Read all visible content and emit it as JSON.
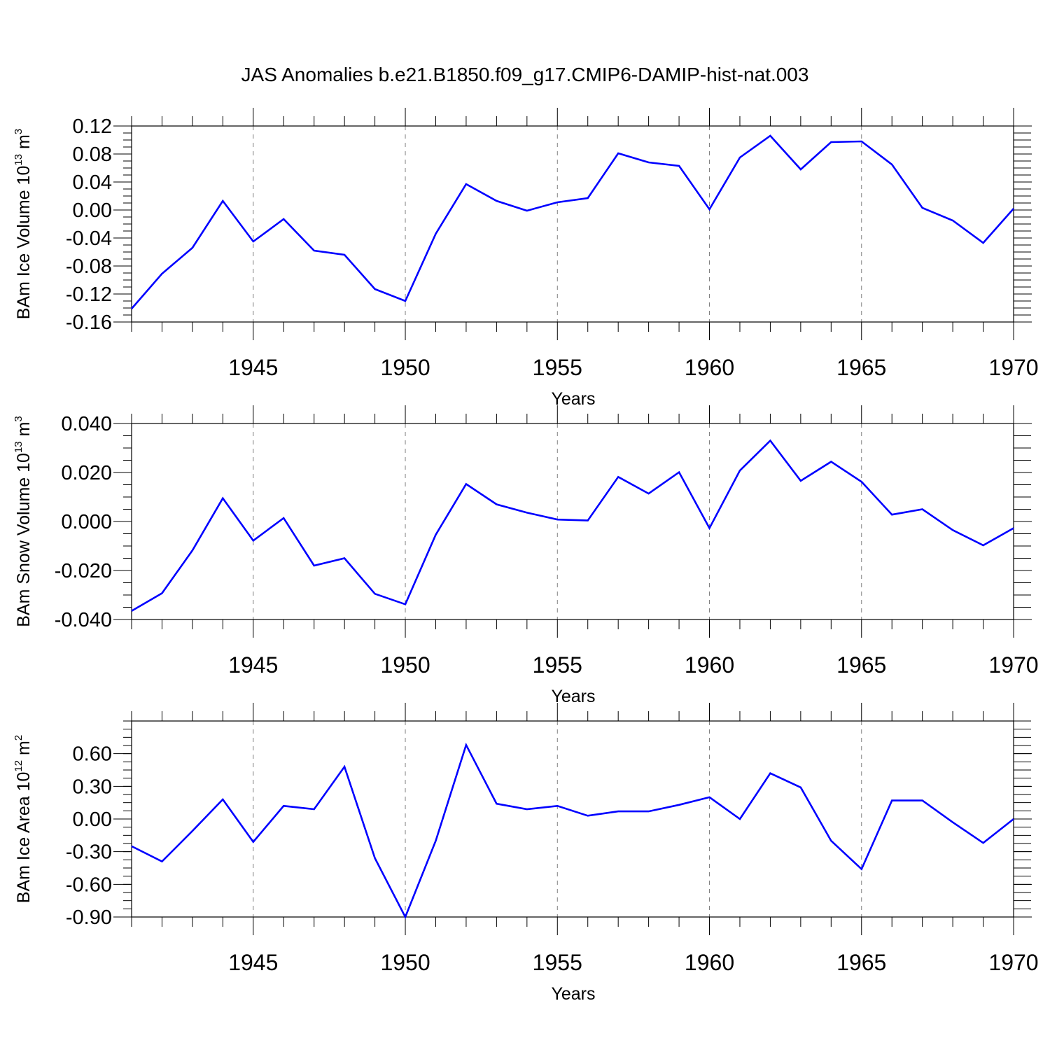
{
  "title": "JAS Anomalies b.e21.B1850.f09_g17.CMIP6-DAMIP-hist-nat.003",
  "colors": {
    "line": "#0000ff",
    "axis": "#000000",
    "grid": "#808080"
  },
  "chart_data": [
    {
      "type": "line",
      "ylabel": {
        "base": "BAm Ice Volume 10",
        "exp": "13",
        "unit": " m",
        "unit_exp": "3"
      },
      "xlabel": "Years",
      "xlim": [
        1941,
        1970
      ],
      "ylim": [
        -0.16,
        0.12
      ],
      "yticks": [
        -0.16,
        -0.12,
        -0.08,
        -0.04,
        0.0,
        0.04,
        0.08,
        0.12
      ],
      "ytick_labels": [
        "-0.16",
        "-0.12",
        "-0.08",
        "-0.04",
        "0.00",
        "0.04",
        "0.08",
        "0.12"
      ],
      "xticks": [
        1945,
        1950,
        1955,
        1960,
        1965,
        1970
      ],
      "xtick_labels": [
        "1945",
        "1950",
        "1955",
        "1960",
        "1965",
        "1970"
      ],
      "grid": "vertical dashed at labeled years",
      "series": [
        {
          "x": [
            1941,
            1942,
            1943,
            1944,
            1945,
            1946,
            1947,
            1948,
            1949,
            1950,
            1951,
            1952,
            1953,
            1954,
            1955,
            1956,
            1957,
            1958,
            1959,
            1960,
            1961,
            1962,
            1963,
            1964,
            1965,
            1966,
            1967,
            1968,
            1969,
            1970
          ],
          "values": [
            -0.141,
            -0.091,
            -0.054,
            0.013,
            -0.045,
            -0.013,
            -0.058,
            -0.064,
            -0.113,
            -0.13,
            -0.034,
            0.037,
            0.013,
            -0.001,
            0.011,
            0.017,
            0.081,
            0.068,
            0.063,
            0.001,
            0.075,
            0.106,
            0.058,
            0.097,
            0.098,
            0.065,
            0.003,
            -0.015,
            -0.047,
            0.002
          ]
        }
      ]
    },
    {
      "type": "line",
      "ylabel": {
        "base": "BAm Snow Volume 10",
        "exp": "13",
        "unit": " m",
        "unit_exp": "3"
      },
      "xlabel": "Years",
      "xlim": [
        1941,
        1970
      ],
      "ylim": [
        -0.04,
        0.04
      ],
      "yticks": [
        -0.04,
        -0.02,
        0.0,
        0.02,
        0.04
      ],
      "ytick_labels": [
        "-0.040",
        "-0.020",
        "0.000",
        "0.020",
        "0.040"
      ],
      "xticks": [
        1945,
        1950,
        1955,
        1960,
        1965,
        1970
      ],
      "xtick_labels": [
        "1945",
        "1950",
        "1955",
        "1960",
        "1965",
        "1970"
      ],
      "grid": "vertical dashed at labeled years",
      "series": [
        {
          "x": [
            1941,
            1942,
            1943,
            1944,
            1945,
            1946,
            1947,
            1948,
            1949,
            1950,
            1951,
            1952,
            1953,
            1954,
            1955,
            1956,
            1957,
            1958,
            1959,
            1960,
            1961,
            1962,
            1963,
            1964,
            1965,
            1966,
            1967,
            1968,
            1969,
            1970
          ],
          "values": [
            -0.0365,
            -0.0293,
            -0.0118,
            0.0095,
            -0.0078,
            0.0014,
            -0.018,
            -0.015,
            -0.0295,
            -0.0338,
            -0.0054,
            0.0153,
            0.007,
            0.0036,
            0.0008,
            0.0004,
            0.0182,
            0.0114,
            0.0201,
            -0.0027,
            0.0208,
            0.033,
            0.0166,
            0.0244,
            0.0162,
            0.0028,
            0.005,
            -0.0035,
            -0.0097,
            -0.0027
          ]
        }
      ]
    },
    {
      "type": "line",
      "ylabel": {
        "base": "BAm Ice Area 10",
        "exp": "12",
        "unit": " m",
        "unit_exp": "2"
      },
      "xlabel": "Years",
      "xlim": [
        1941,
        1970
      ],
      "ylim": [
        -0.9,
        0.9
      ],
      "yticks": [
        -0.9,
        -0.6,
        -0.3,
        0.0,
        0.3,
        0.6
      ],
      "ytick_labels": [
        "-0.90",
        "-0.60",
        "-0.30",
        "0.00",
        "0.30",
        "0.60"
      ],
      "xticks": [
        1945,
        1950,
        1955,
        1960,
        1965,
        1970
      ],
      "xtick_labels": [
        "1945",
        "1950",
        "1955",
        "1960",
        "1965",
        "1970"
      ],
      "grid": "vertical dashed at labeled years",
      "series": [
        {
          "x": [
            1941,
            1942,
            1943,
            1944,
            1945,
            1946,
            1947,
            1948,
            1949,
            1950,
            1951,
            1952,
            1953,
            1954,
            1955,
            1956,
            1957,
            1958,
            1959,
            1960,
            1961,
            1962,
            1963,
            1964,
            1965,
            1966,
            1967,
            1968,
            1969,
            1970
          ],
          "values": [
            -0.25,
            -0.39,
            -0.11,
            0.18,
            -0.21,
            0.12,
            0.09,
            0.48,
            -0.36,
            -0.9,
            -0.2,
            0.68,
            0.14,
            0.09,
            0.12,
            0.03,
            0.07,
            0.07,
            0.13,
            0.2,
            0.0,
            0.42,
            0.29,
            -0.2,
            -0.46,
            0.17,
            0.17,
            -0.03,
            -0.22,
            0.0
          ]
        }
      ]
    }
  ]
}
